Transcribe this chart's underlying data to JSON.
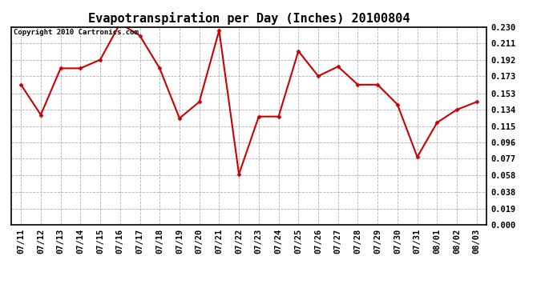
{
  "title": "Evapotranspiration per Day (Inches) 20100804",
  "copyright": "Copyright 2010 Cartronics.com",
  "dates": [
    "07/11",
    "07/12",
    "07/13",
    "07/14",
    "07/15",
    "07/16",
    "07/17",
    "07/18",
    "07/19",
    "07/20",
    "07/21",
    "07/22",
    "07/23",
    "07/24",
    "07/25",
    "07/26",
    "07/27",
    "07/28",
    "07/29",
    "07/30",
    "07/31",
    "08/01",
    "08/02",
    "08/03"
  ],
  "values": [
    0.163,
    0.128,
    0.182,
    0.182,
    0.192,
    0.234,
    0.22,
    0.182,
    0.124,
    0.143,
    0.226,
    0.059,
    0.126,
    0.126,
    0.202,
    0.173,
    0.184,
    0.163,
    0.163,
    0.14,
    0.079,
    0.119,
    0.134,
    0.143
  ],
  "line_color": "#cc0000",
  "marker": "D",
  "marker_size": 2.5,
  "yticks": [
    0.0,
    0.019,
    0.038,
    0.058,
    0.077,
    0.096,
    0.115,
    0.134,
    0.153,
    0.173,
    0.192,
    0.211,
    0.23
  ],
  "ylim": [
    0.0,
    0.23
  ],
  "background_color": "#ffffff",
  "grid_color": "#b0b0b0",
  "title_fontsize": 11,
  "tick_fontsize": 7.5,
  "copyright_fontsize": 6.5,
  "line_width": 1.5
}
